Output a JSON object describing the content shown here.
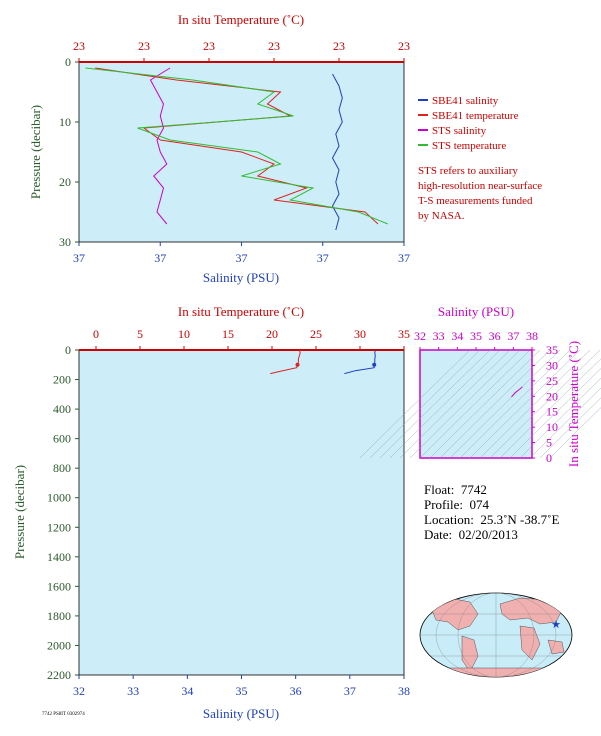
{
  "top_chart": {
    "top_axis_title": "In situ Temperature (˚C)",
    "bottom_axis_title": "Salinity (PSU)",
    "y_axis_title": "Pressure (decibar)",
    "top_ticks": [
      "23",
      "23",
      "23",
      "23",
      "23",
      "23"
    ],
    "bottom_ticks": [
      "37",
      "37",
      "37",
      "37",
      "37"
    ],
    "y_ticks": [
      "0",
      "10",
      "20",
      "30"
    ]
  },
  "legend": [
    {
      "label": "SBE41 salinity",
      "color": "#1f3fbf"
    },
    {
      "label": "SBE41 temperature",
      "color": "#dd2222"
    },
    {
      "label": "STS salinity",
      "color": "#cc00cc"
    },
    {
      "label": "STS temperature",
      "color": "#33bb33"
    }
  ],
  "note_lines": [
    "STS refers to auxiliary",
    "high-resolution near-surface",
    "T-S measurements funded",
    "by NASA."
  ],
  "main_chart": {
    "top_axis_title": "In situ Temperature (˚C)",
    "bottom_axis_title": "Salinity (PSU)",
    "y_axis_title": "Pressure (decibar)",
    "top_ticks": [
      "0",
      "5",
      "10",
      "15",
      "20",
      "25",
      "30",
      "35"
    ],
    "bottom_ticks": [
      "32",
      "33",
      "34",
      "35",
      "36",
      "37",
      "38"
    ],
    "y_ticks": [
      "0",
      "200",
      "400",
      "600",
      "800",
      "1000",
      "1200",
      "1400",
      "1600",
      "1800",
      "2000",
      "2200"
    ]
  },
  "ts_chart": {
    "top_axis_title": "Salinity (PSU)",
    "right_axis_title": "In situ Temperature (˚C)",
    "top_ticks": [
      "32",
      "33",
      "34",
      "35",
      "36",
      "37",
      "38"
    ],
    "right_ticks": [
      "0",
      "5",
      "10",
      "15",
      "20",
      "25",
      "30",
      "35"
    ]
  },
  "float_info": {
    "float_label": "Float:",
    "float_value": "7742",
    "profile_label": "Profile:",
    "profile_value": "074",
    "location_label": "Location:",
    "location_value": "25.3˚N  -38.7˚E",
    "date_label": "Date:",
    "date_value": "02/20/2013"
  },
  "footer_code": "7742 PS8IT 0302974",
  "colors": {
    "plot_bg": "#cdeef8",
    "temperature_axis": "#cc0000",
    "salinity_axis": "#1f3fbf",
    "pressure_axis": "#2a5a2a",
    "ts_axis": "#cc00cc",
    "map_land": "#f0b0b0",
    "map_ocean": "#c8ecf8"
  },
  "chart_data": [
    {
      "type": "line",
      "x_label": "Salinity (PSU)",
      "x2_label": "In situ Temperature (˚C)",
      "y_label": "Pressure (decibar)",
      "ylim": [
        30,
        0
      ],
      "series": [
        {
          "name": "SBE41 salinity",
          "color": "#1f3fbf",
          "pressure": [
            2,
            4,
            6,
            8,
            10,
            12,
            14,
            16,
            18,
            20,
            22,
            24,
            26,
            28
          ],
          "x_frac": [
            0.78,
            0.8,
            0.81,
            0.8,
            0.81,
            0.79,
            0.8,
            0.78,
            0.8,
            0.79,
            0.8,
            0.78,
            0.8,
            0.79
          ]
        },
        {
          "name": "SBE41 temperature",
          "color": "#dd2222",
          "pressure": [
            1,
            3,
            5,
            7,
            9,
            11,
            13,
            15,
            17,
            19,
            21,
            23,
            25,
            27
          ],
          "x_frac": [
            0.05,
            0.3,
            0.62,
            0.58,
            0.65,
            0.2,
            0.25,
            0.5,
            0.6,
            0.55,
            0.7,
            0.6,
            0.88,
            0.92
          ]
        },
        {
          "name": "STS salinity",
          "color": "#cc00cc",
          "pressure": [
            1,
            3,
            5,
            7,
            9,
            11,
            13,
            15,
            17,
            19,
            21,
            23,
            25,
            27
          ],
          "x_frac": [
            0.28,
            0.22,
            0.24,
            0.26,
            0.25,
            0.26,
            0.24,
            0.25,
            0.27,
            0.23,
            0.26,
            0.25,
            0.24,
            0.27
          ]
        },
        {
          "name": "STS temperature",
          "color": "#33bb33",
          "pressure": [
            1,
            3,
            5,
            7,
            9,
            11,
            13,
            15,
            17,
            19,
            21,
            23,
            25,
            27
          ],
          "x_frac": [
            0.02,
            0.35,
            0.6,
            0.55,
            0.66,
            0.18,
            0.28,
            0.55,
            0.62,
            0.5,
            0.72,
            0.65,
            0.86,
            0.95
          ]
        }
      ]
    },
    {
      "type": "line",
      "x_label": "Salinity (PSU)",
      "x2_label": "In situ Temperature (˚C)",
      "y_label": "Pressure (decibar)",
      "ylim": [
        2200,
        0
      ],
      "xlim_salinity": [
        32,
        38
      ],
      "xlim_temperature": [
        0,
        35
      ],
      "series": [
        {
          "name": "Temperature",
          "color": "#dd2222",
          "pressure": [
            0,
            20,
            40,
            60,
            80,
            100,
            120,
            140,
            160
          ],
          "values": [
            23.1,
            23.2,
            23.1,
            23.0,
            23.0,
            22.9,
            22.8,
            21.2,
            19.8
          ]
        },
        {
          "name": "Salinity",
          "color": "#1f3fbf",
          "pressure": [
            0,
            20,
            40,
            60,
            80,
            100,
            120,
            140,
            160
          ],
          "values": [
            37.47,
            37.46,
            37.47,
            37.46,
            37.46,
            37.45,
            37.45,
            37.1,
            36.9
          ]
        }
      ]
    },
    {
      "type": "scatter",
      "x_label": "Salinity (PSU)",
      "y_label": "In situ Temperature (˚C)",
      "xlim": [
        32,
        38
      ],
      "ylim": [
        0,
        35
      ],
      "series": [
        {
          "name": "T-S",
          "color": "#cc00cc",
          "x": [
            36.9,
            37.1,
            37.45,
            37.47
          ],
          "y": [
            19.8,
            21.2,
            22.8,
            23.1
          ]
        }
      ]
    }
  ]
}
